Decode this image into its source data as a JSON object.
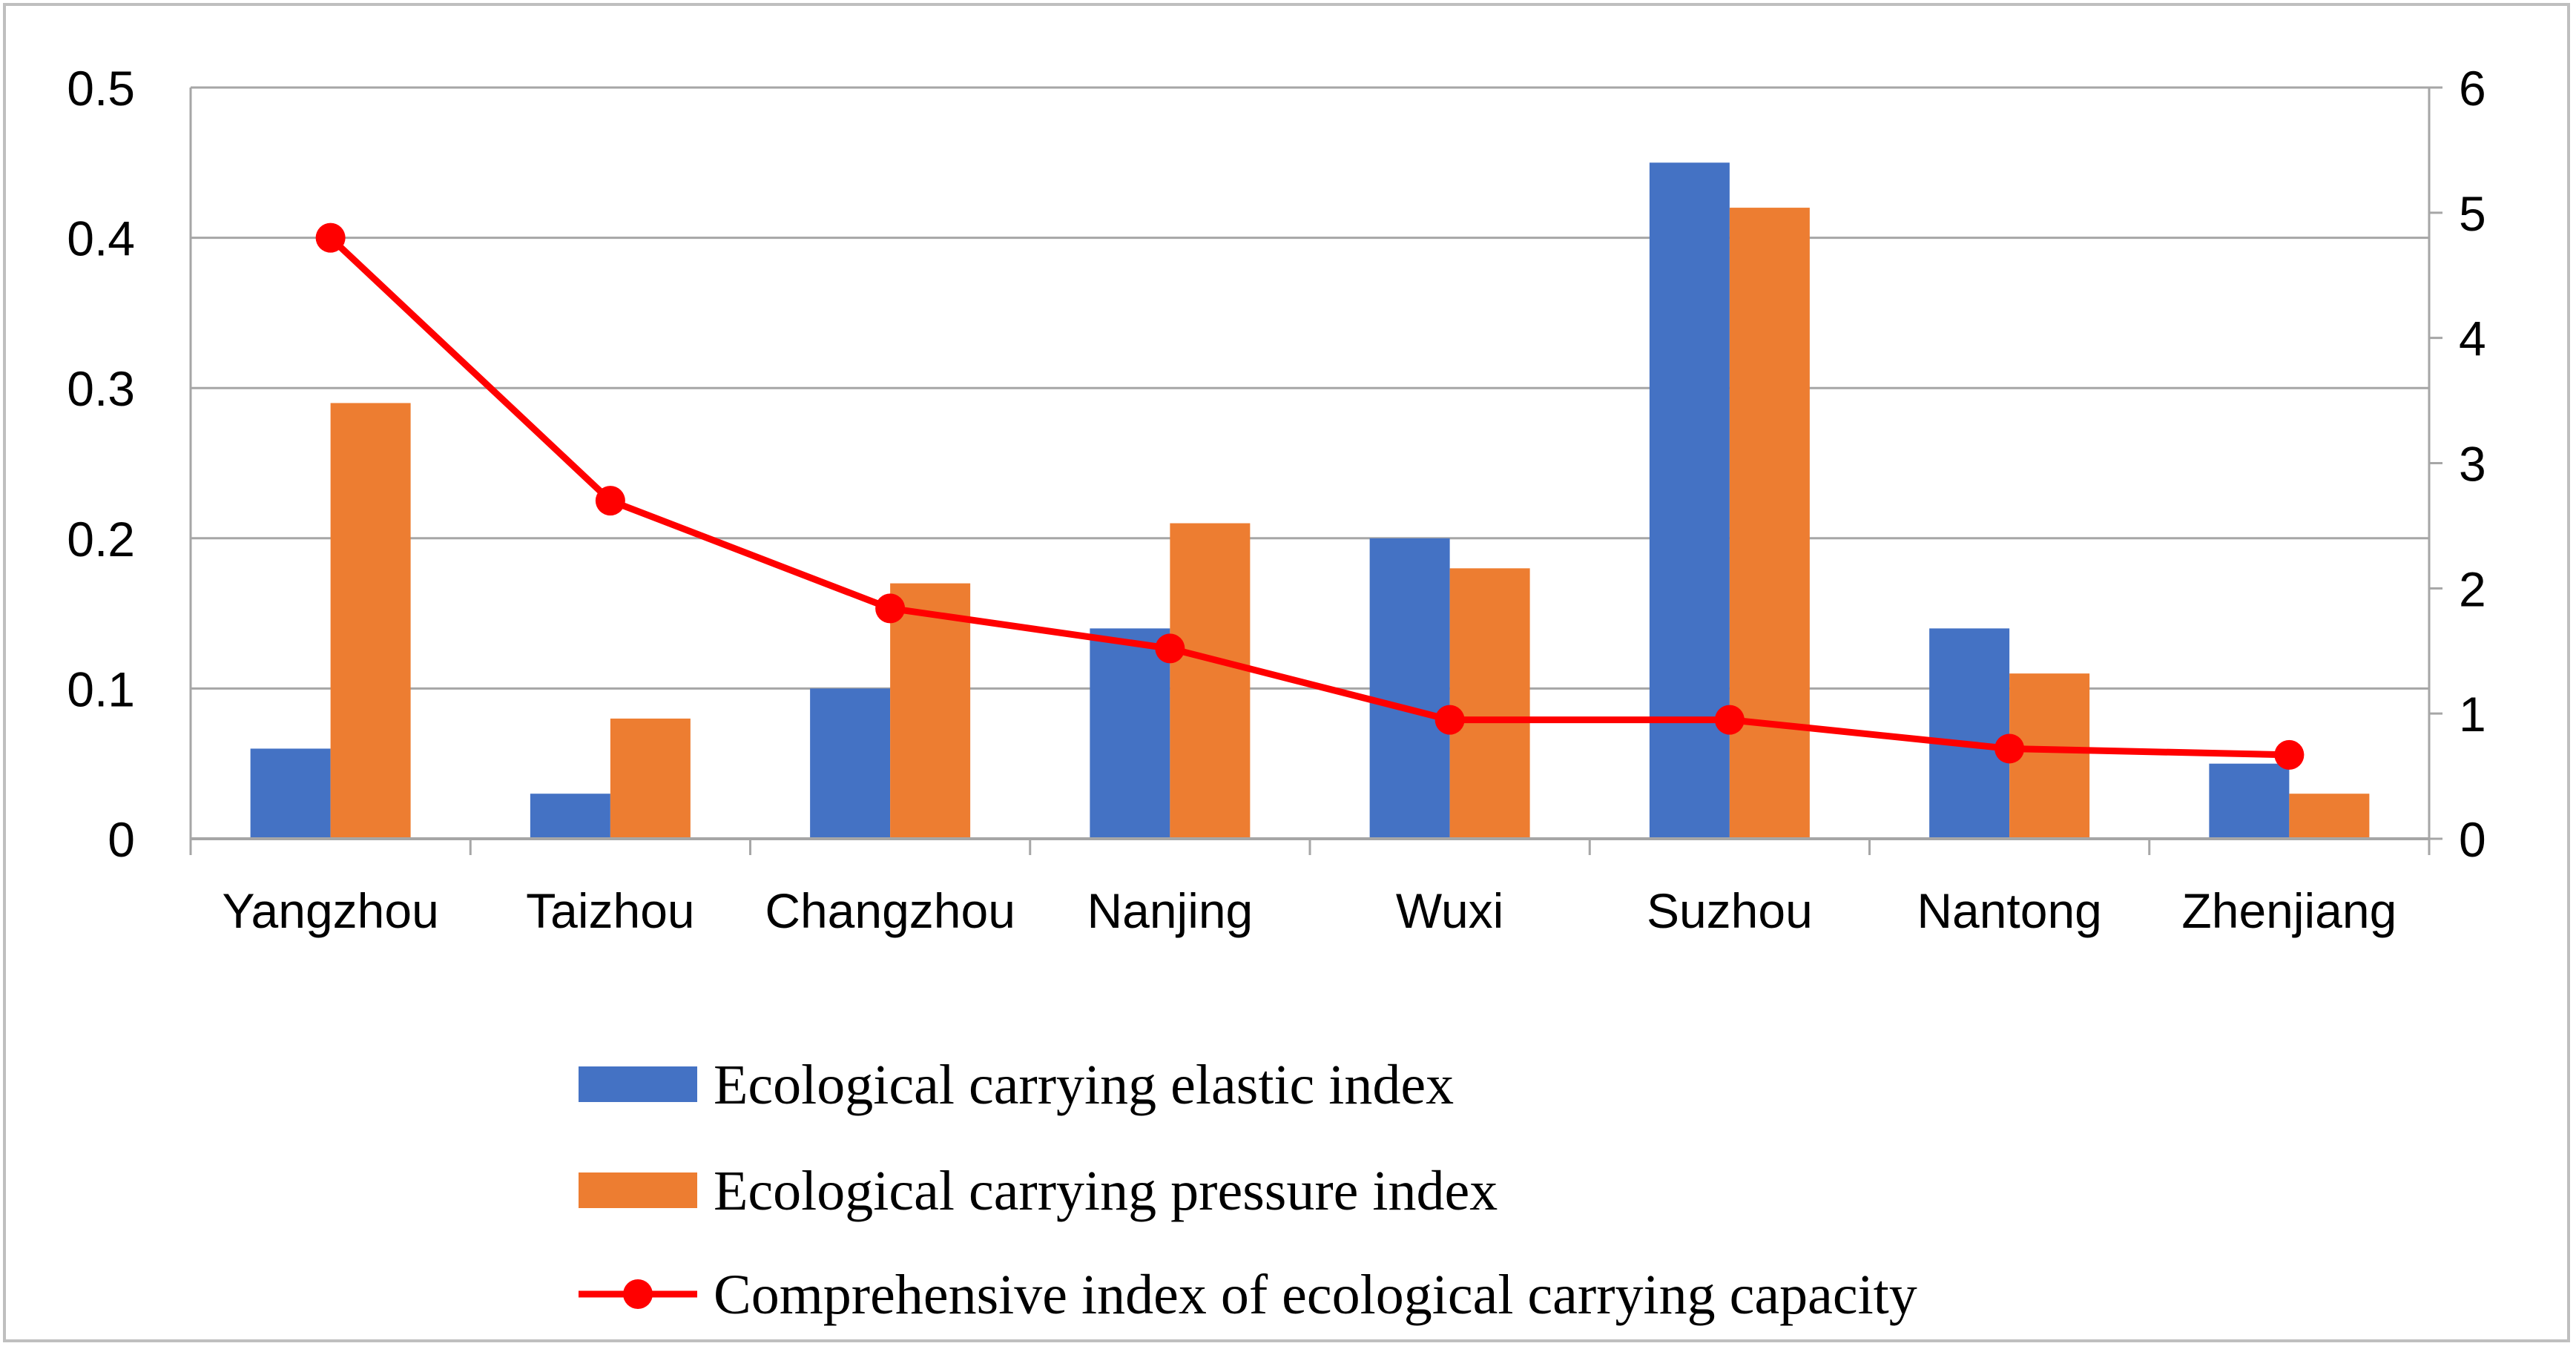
{
  "chart_data": {
    "type": "bar",
    "categories": [
      "Yangzhou",
      "Taizhou",
      "Changzhou",
      "Nanjing",
      "Wuxi",
      "Suzhou",
      "Nantong",
      "Zhenjiang"
    ],
    "series": [
      {
        "name": "Ecological carrying elastic index",
        "kind": "bar",
        "axis": "left",
        "color": "#4472C4",
        "values": [
          0.06,
          0.03,
          0.1,
          0.14,
          0.2,
          0.45,
          0.14,
          0.05
        ]
      },
      {
        "name": "Ecological carrying pressure index",
        "kind": "bar",
        "axis": "left",
        "color": "#ED7D31",
        "values": [
          0.29,
          0.08,
          0.17,
          0.21,
          0.18,
          0.42,
          0.11,
          0.03
        ]
      },
      {
        "name": "Comprehensive index of ecological carrying capacity",
        "kind": "line",
        "axis": "right",
        "color": "#FF0000",
        "values": [
          4.8,
          2.7,
          1.84,
          1.52,
          0.95,
          0.95,
          0.72,
          0.67
        ]
      }
    ],
    "y_left": {
      "min": 0,
      "max": 0.5,
      "ticks": [
        "0",
        "0.1",
        "0.2",
        "0.3",
        "0.4",
        "0.5"
      ]
    },
    "y_right": {
      "min": 0,
      "max": 6,
      "ticks": [
        "0",
        "1",
        "2",
        "3",
        "4",
        "5",
        "6"
      ]
    },
    "grid": true,
    "legend_position": "bottom",
    "title": "",
    "xlabel": "",
    "ylabel": ""
  }
}
